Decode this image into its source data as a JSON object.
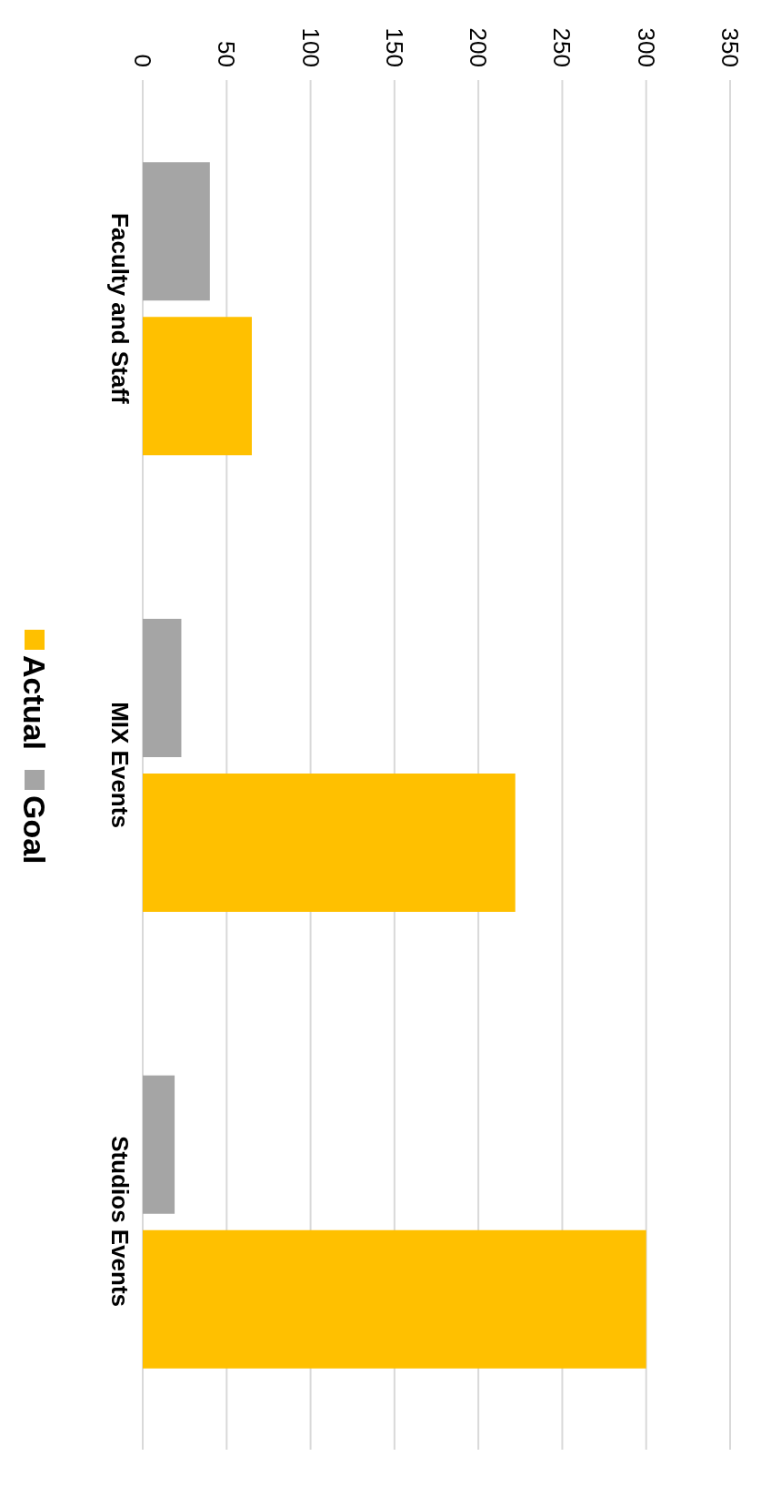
{
  "chart_data": {
    "type": "bar",
    "orientation": "horizontal",
    "categories": [
      "Faculty and Staff",
      "MIX Events",
      "Studios Events"
    ],
    "series": [
      {
        "name": "Goal",
        "color": "#a5a5a5",
        "values": [
          40,
          23,
          19
        ]
      },
      {
        "name": "Actual",
        "color": "#ffc000",
        "values": [
          65,
          222,
          300
        ]
      }
    ],
    "xlim": [
      0,
      350
    ],
    "xticks": [
      0,
      50,
      100,
      150,
      200,
      250,
      300,
      350
    ],
    "grid": "x",
    "legend": "left"
  }
}
